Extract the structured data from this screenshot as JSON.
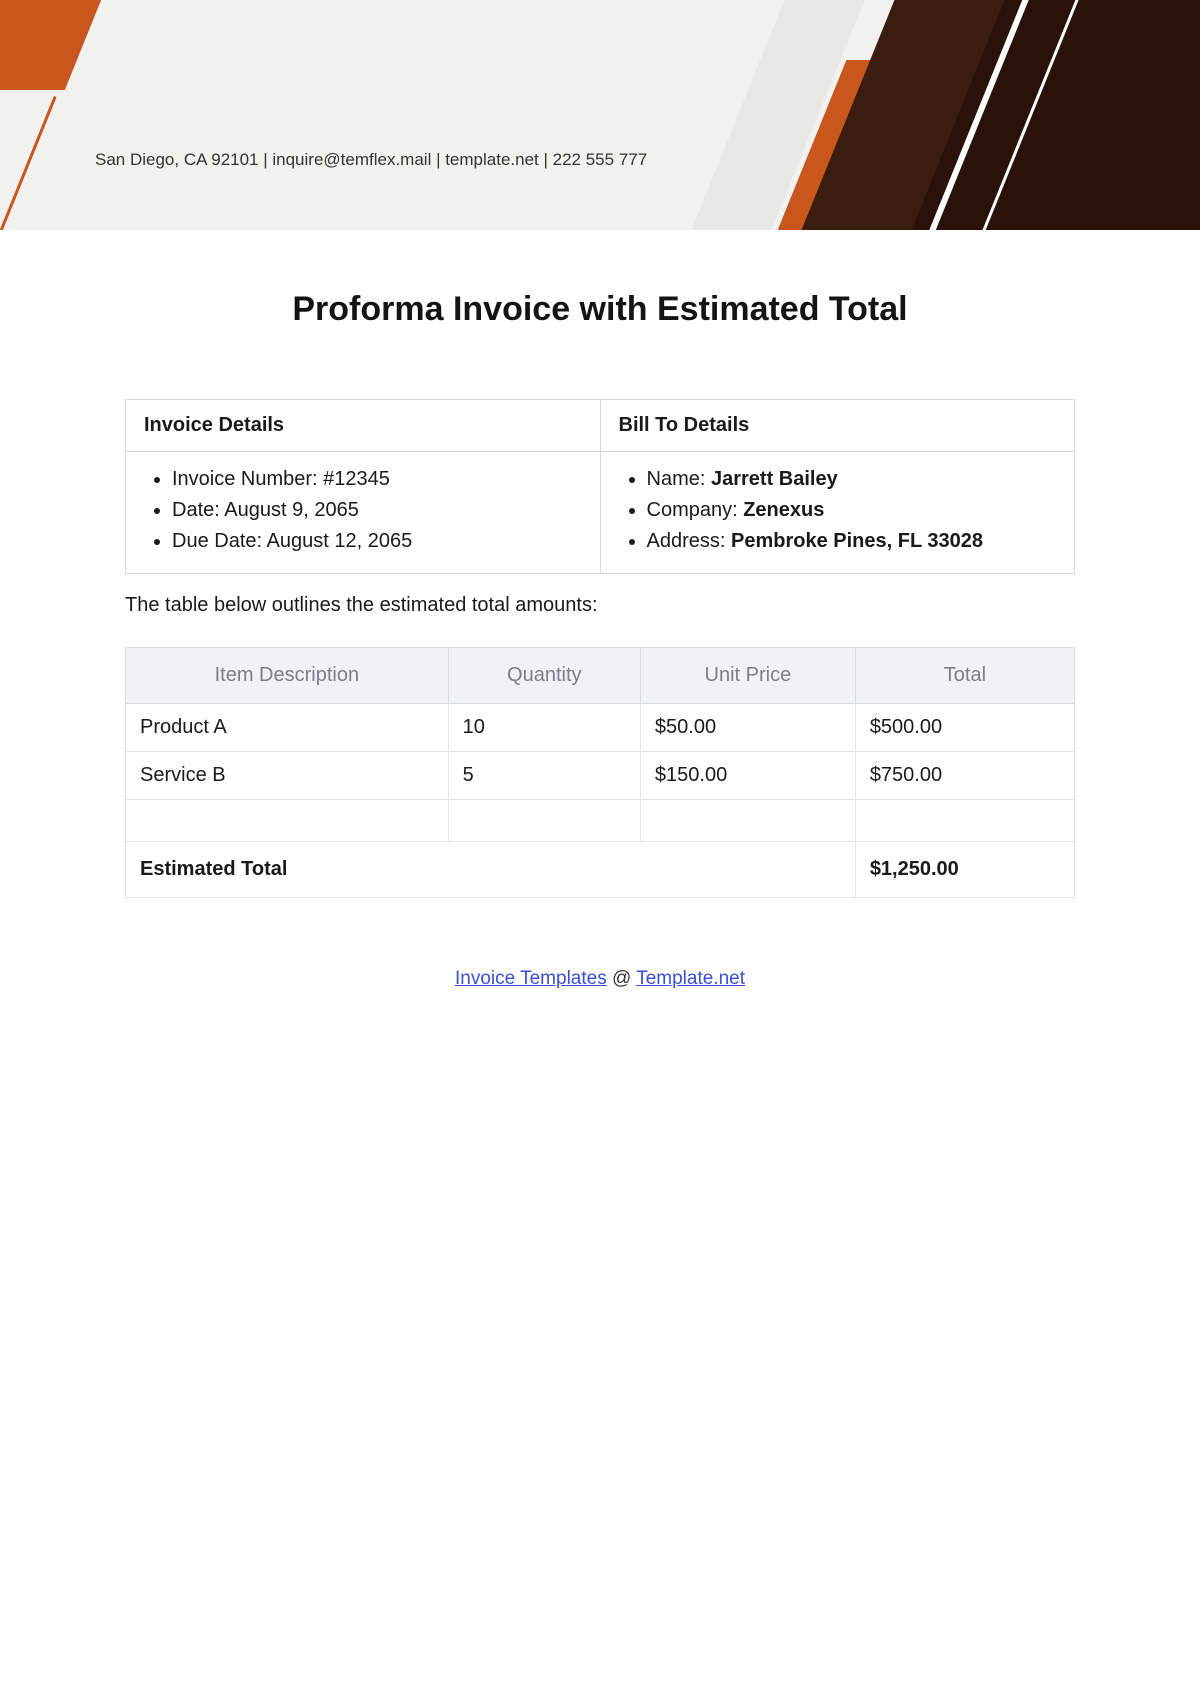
{
  "colors": {
    "header_bg": "#f1f1f0",
    "orange": "#c9571d",
    "brown_dark": "#2a120a",
    "brown": "#3b1d10",
    "grey_light": "#e8e8e7",
    "border": "#d9d9d9",
    "items_header_bg": "#f0f2f8",
    "items_header_text": "#7a7f87",
    "link": "#3a4fd8"
  },
  "header": {
    "contact_line": "San Diego, CA 92101 | inquire@temflex.mail | template.net | 222 555 777"
  },
  "title": "Proforma Invoice with Estimated Total",
  "details": {
    "left_heading": "Invoice Details",
    "right_heading": "Bill To Details",
    "invoice": {
      "number_label": "Invoice Number: ",
      "number_value": "#12345",
      "date_label": "Date: ",
      "date_value": "August 9, 2065",
      "due_label": "Due Date: ",
      "due_value": "August 12, 2065"
    },
    "bill_to": {
      "name_label": "Name: ",
      "name_value": "Jarrett Bailey",
      "company_label": "Company: ",
      "company_value": "Zenexus",
      "address_label": "Address: ",
      "address_value": "Pembroke Pines, FL 33028"
    }
  },
  "intro_text": "The table below outlines the estimated total amounts:",
  "items_table": {
    "columns": [
      "Item Description",
      "Quantity",
      "Unit Price",
      "Total"
    ],
    "rows": [
      {
        "desc": "Product A",
        "qty": "10",
        "unit": "$50.00",
        "total": "$500.00"
      },
      {
        "desc": "Service B",
        "qty": "5",
        "unit": "$150.00",
        "total": "$750.00"
      }
    ],
    "total_label": "Estimated Total",
    "total_value": "$1,250.00"
  },
  "footer": {
    "link1_text": "Invoice Templates",
    "separator": " @ ",
    "link2_text": "Template.net"
  }
}
